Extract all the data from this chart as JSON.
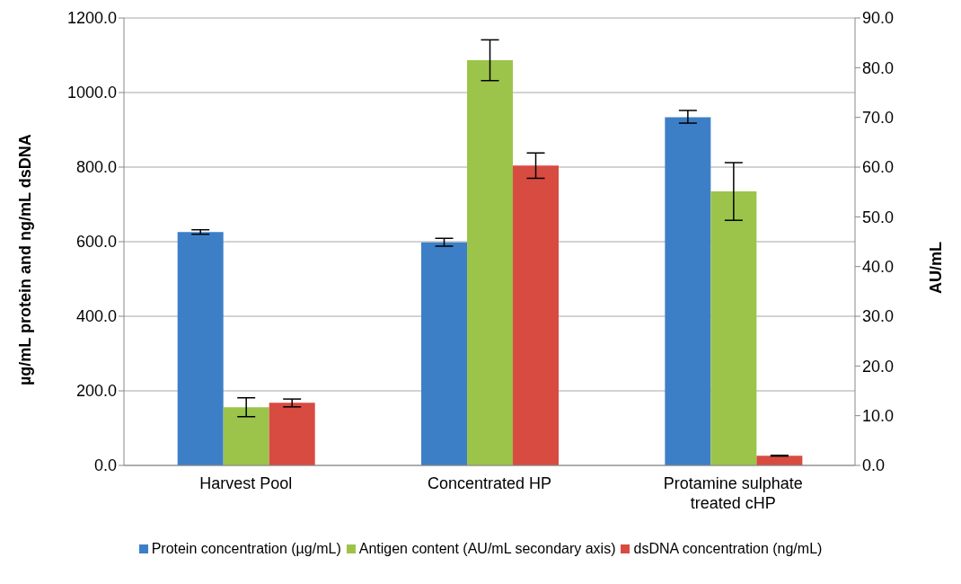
{
  "chart_data": {
    "type": "bar",
    "ylabel": "µg/mL protein and ng/mL dsDNA",
    "y2label": "AU/mL",
    "categories": [
      "Harvest Pool",
      "Concentrated HP",
      "Protamine sulphate treated cHP"
    ],
    "series": [
      {
        "name": "Protein concentration (µg/mL)",
        "color": "#3d7fc6",
        "values": [
          626,
          598,
          934
        ],
        "errors": [
          [
            620,
            632
          ],
          [
            588,
            609
          ],
          [
            918,
            952
          ]
        ]
      },
      {
        "name": "Antigen content (AU/mL secondary axis)",
        "color": "#9cc44a",
        "axis": "y2",
        "values": [
          11.7,
          81.5,
          55.1
        ],
        "errors": [
          [
            9.8,
            13.6
          ],
          [
            77.4,
            85.6
          ],
          [
            49.3,
            60.9
          ]
        ]
      },
      {
        "name": "dsDNA concentration (ng/mL)",
        "color": "#d84b40",
        "values": [
          168,
          804,
          26
        ],
        "errors": [
          [
            157,
            178
          ],
          [
            770,
            838
          ],
          [
            25,
            27
          ]
        ]
      }
    ],
    "ylim": [
      0,
      1200
    ],
    "yticks": [
      {
        "value": 0,
        "label": "0.0"
      },
      {
        "value": 200,
        "label": "200.0"
      },
      {
        "value": 400,
        "label": "400.0"
      },
      {
        "value": 600,
        "label": "600.0"
      },
      {
        "value": 800,
        "label": "800.0"
      },
      {
        "value": 1000,
        "label": "1000.0"
      },
      {
        "value": 1200,
        "label": "1200.0"
      }
    ],
    "y2lim": [
      0,
      90
    ],
    "y2ticks": [
      {
        "value": 0,
        "label": "0.0"
      },
      {
        "value": 10,
        "label": "10.0"
      },
      {
        "value": 20,
        "label": "20.0"
      },
      {
        "value": 30,
        "label": "30.0"
      },
      {
        "value": 40,
        "label": "40.0"
      },
      {
        "value": 50,
        "label": "50.0"
      },
      {
        "value": 60,
        "label": "60.0"
      },
      {
        "value": 70,
        "label": "70.0"
      },
      {
        "value": 80,
        "label": "80.0"
      },
      {
        "value": 90,
        "label": "90.0"
      }
    ],
    "grid": "y",
    "legend": "bottom"
  }
}
